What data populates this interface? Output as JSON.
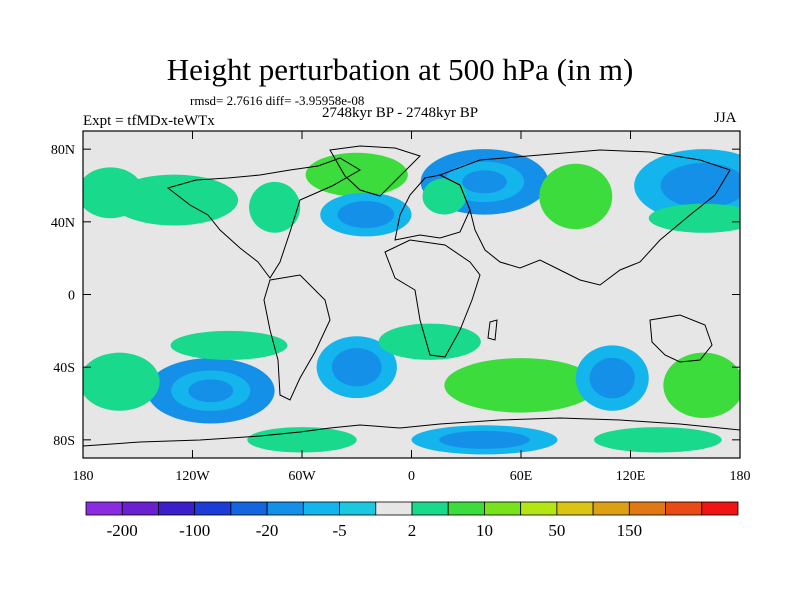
{
  "chart_data": {
    "type": "heatmap",
    "title": "Height perturbation at 500 hPa (in m)",
    "subtitle": "rmsd= 2.7616 diff= -3.95958e-08",
    "left_label": "Expt = tfMDx-teWTx",
    "center_label": "2748kyr BP - 2748kyr BP",
    "right_label": "JJA",
    "xlim": [
      -180,
      180
    ],
    "ylim": [
      -90,
      90
    ],
    "x_ticks": [
      {
        "value": -180,
        "label": "180"
      },
      {
        "value": -120,
        "label": "120W"
      },
      {
        "value": -60,
        "label": "60W"
      },
      {
        "value": 0,
        "label": "0"
      },
      {
        "value": 60,
        "label": "60E"
      },
      {
        "value": 120,
        "label": "120E"
      },
      {
        "value": 180,
        "label": "180"
      }
    ],
    "y_ticks": [
      {
        "value": 80,
        "label": "80N"
      },
      {
        "value": 40,
        "label": "40N"
      },
      {
        "value": 0,
        "label": "0"
      },
      {
        "value": -40,
        "label": "40S"
      },
      {
        "value": -80,
        "label": "80S"
      }
    ],
    "colorbar": {
      "colors": [
        "#8a2be2",
        "#6a1fd0",
        "#3c1fc8",
        "#1c3cd8",
        "#1466e0",
        "#1490e8",
        "#14b4ec",
        "#1cc8e0",
        "#e6e6e6",
        "#19d98c",
        "#3cdc3c",
        "#78e21c",
        "#b4e614",
        "#dcc414",
        "#dca014",
        "#e07814",
        "#e84c14",
        "#f01414"
      ],
      "labels": [
        {
          "boundary": 1,
          "text": "-200"
        },
        {
          "boundary": 3,
          "text": "-100"
        },
        {
          "boundary": 5,
          "text": "-20"
        },
        {
          "boundary": 7,
          "text": "-5"
        },
        {
          "boundary": 9,
          "text": "2"
        },
        {
          "boundary": 11,
          "text": "10"
        },
        {
          "boundary": 13,
          "text": "50"
        },
        {
          "boundary": 15,
          "text": "150"
        }
      ]
    },
    "anomalies": [
      {
        "lon": -130,
        "lat": 52,
        "rlon": 35,
        "rlat": 14,
        "value": 5
      },
      {
        "lon": -30,
        "lat": 66,
        "rlon": 28,
        "rlat": 12,
        "value": 10
      },
      {
        "lon": -25,
        "lat": 44,
        "rlon": 25,
        "rlat": 12,
        "value": -10
      },
      {
        "lon": -75,
        "lat": 48,
        "rlon": 14,
        "rlat": 14,
        "value": 5
      },
      {
        "lon": 40,
        "lat": 62,
        "rlon": 35,
        "rlat": 18,
        "value": -15
      },
      {
        "lon": 18,
        "lat": 54,
        "rlon": 12,
        "rlat": 10,
        "value": 5
      },
      {
        "lon": 90,
        "lat": 54,
        "rlon": 20,
        "rlat": 18,
        "value": 10
      },
      {
        "lon": 160,
        "lat": 60,
        "rlon": 38,
        "rlat": 20,
        "value": -10
      },
      {
        "lon": 160,
        "lat": 42,
        "rlon": 30,
        "rlat": 8,
        "value": 5
      },
      {
        "lon": -165,
        "lat": 56,
        "rlon": 18,
        "rlat": 14,
        "value": 5
      },
      {
        "lon": -110,
        "lat": -53,
        "rlon": 35,
        "rlat": 18,
        "value": -15
      },
      {
        "lon": -100,
        "lat": -28,
        "rlon": 32,
        "rlat": 8,
        "value": 5
      },
      {
        "lon": -160,
        "lat": -48,
        "rlon": 22,
        "rlat": 16,
        "value": 5
      },
      {
        "lon": -30,
        "lat": -40,
        "rlon": 22,
        "rlat": 17,
        "value": -10
      },
      {
        "lon": 10,
        "lat": -26,
        "rlon": 28,
        "rlat": 10,
        "value": 5
      },
      {
        "lon": 60,
        "lat": -50,
        "rlon": 42,
        "rlat": 15,
        "value": 10
      },
      {
        "lon": 110,
        "lat": -46,
        "rlon": 20,
        "rlat": 18,
        "value": -10
      },
      {
        "lon": 160,
        "lat": -50,
        "rlon": 22,
        "rlat": 18,
        "value": 10
      },
      {
        "lon": -60,
        "lat": -80,
        "rlon": 30,
        "rlat": 7,
        "value": 5
      },
      {
        "lon": 40,
        "lat": -80,
        "rlon": 40,
        "rlat": 8,
        "value": -10
      },
      {
        "lon": 135,
        "lat": -80,
        "rlon": 35,
        "rlat": 7,
        "value": 5
      }
    ]
  }
}
